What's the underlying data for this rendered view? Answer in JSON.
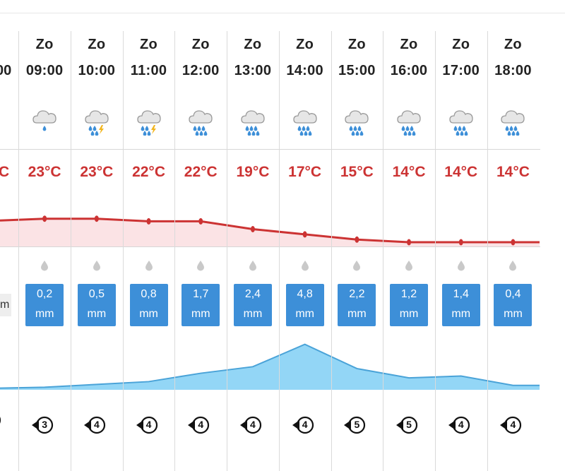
{
  "columns": [
    {
      "day": "Zo",
      "time": "09:00",
      "icon": "cloud-drizzle-icon",
      "temp": "23°C",
      "rain": "0,2",
      "unit": "mm",
      "wind": "3"
    },
    {
      "day": "Zo",
      "time": "10:00",
      "icon": "cloud-rain-thunder-icon",
      "temp": "23°C",
      "rain": "0,5",
      "unit": "mm",
      "wind": "4"
    },
    {
      "day": "Zo",
      "time": "11:00",
      "icon": "cloud-rain-thunder-icon",
      "temp": "22°C",
      "rain": "0,8",
      "unit": "mm",
      "wind": "4"
    },
    {
      "day": "Zo",
      "time": "12:00",
      "icon": "cloud-rain-icon",
      "temp": "22°C",
      "rain": "1,7",
      "unit": "mm",
      "wind": "4"
    },
    {
      "day": "Zo",
      "time": "13:00",
      "icon": "cloud-rain-icon",
      "temp": "19°C",
      "rain": "2,4",
      "unit": "mm",
      "wind": "4"
    },
    {
      "day": "Zo",
      "time": "14:00",
      "icon": "cloud-rain-icon",
      "temp": "17°C",
      "rain": "4,8",
      "unit": "mm",
      "wind": "4"
    },
    {
      "day": "Zo",
      "time": "15:00",
      "icon": "cloud-rain-icon",
      "temp": "15°C",
      "rain": "2,2",
      "unit": "mm",
      "wind": "5"
    },
    {
      "day": "Zo",
      "time": "16:00",
      "icon": "cloud-rain-icon",
      "temp": "14°C",
      "rain": "1,2",
      "unit": "mm",
      "wind": "5"
    },
    {
      "day": "Zo",
      "time": "17:00",
      "icon": "cloud-rain-icon",
      "temp": "14°C",
      "rain": "1,4",
      "unit": "mm",
      "wind": "4"
    },
    {
      "day": "Zo",
      "time": "18:00",
      "icon": "cloud-rain-icon",
      "temp": "14°C",
      "rain": "0,4",
      "unit": "mm",
      "wind": "4"
    }
  ],
  "partial_left": {
    "time_fragment": "00",
    "temp_fragment": "C",
    "unit_fragment": "m"
  },
  "colors": {
    "temp": "#cc3333",
    "temp_fill": "#fbe3e5",
    "rain_box": "#3d8fd8",
    "rain_area": "#93d6f6",
    "rain_line": "#4aa3d8",
    "grid": "#dadada"
  }
}
